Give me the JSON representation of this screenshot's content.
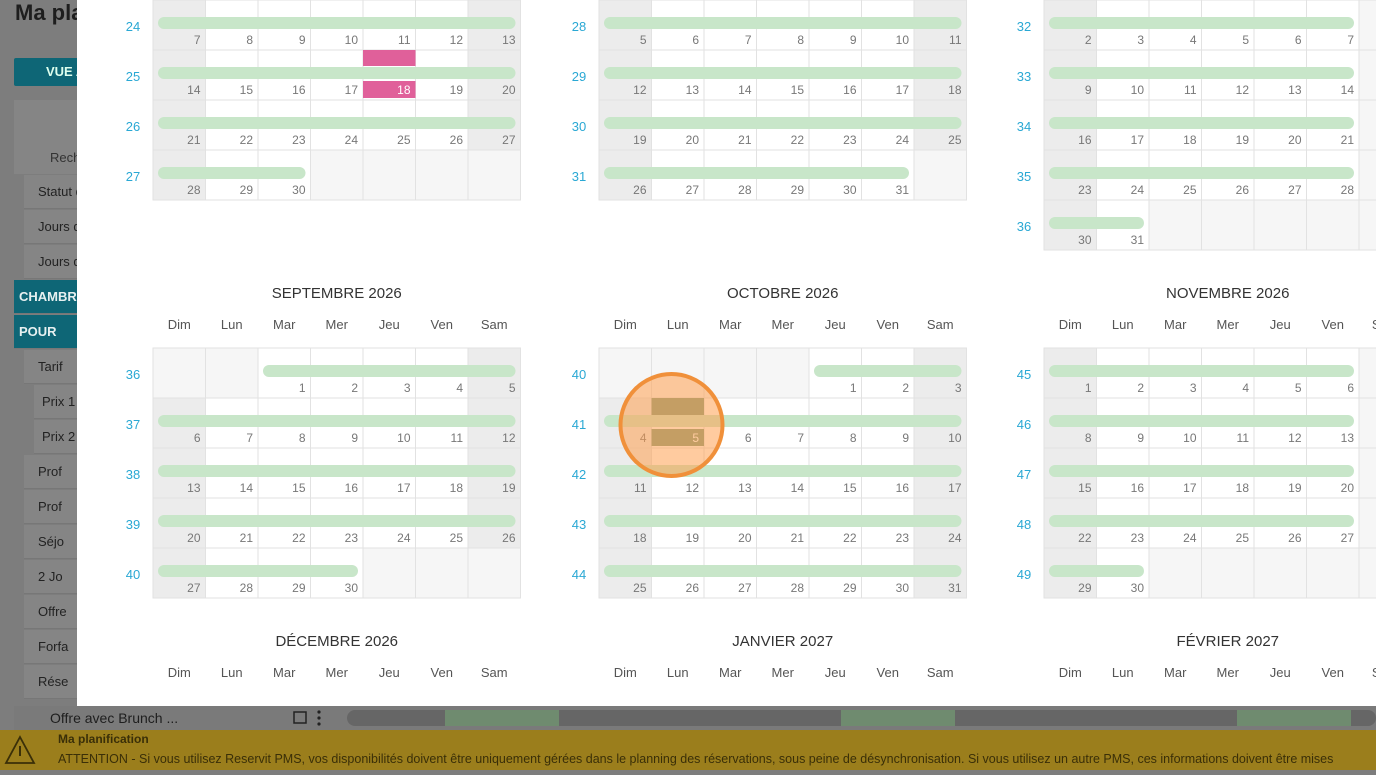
{
  "background": {
    "title": "Ma pla",
    "button": "VUE A",
    "search": "Rech",
    "sidebar": [
      "Statut de",
      "Jours d'a",
      "Jours de",
      "CHAMBR",
      "POUR",
      "Tarif",
      "Prix 1",
      "Prix 2",
      "Prof",
      "Prof",
      "Séjo",
      "2 Jo",
      "Offre",
      "Forfa",
      "Rése"
    ],
    "footer_row": "Offre avec Brunch ..."
  },
  "banner": {
    "title": "Ma planification",
    "message": "ATTENTION - Si vous utilisez Reservit PMS, vos disponibilités doivent être uniquement gérées dans le planning des réservations, sous peine de désynchronisation. Si vous utilisez un autre PMS, ces informations doivent être mises"
  },
  "calendar": {
    "weekdays": [
      "Dim",
      "Lun",
      "Mar",
      "Mer",
      "Jeu",
      "Ven",
      "Sam"
    ],
    "months": [
      {
        "weeks": [
          {
            "week": 24,
            "days": [
              7,
              8,
              9,
              10,
              11,
              12,
              13
            ]
          },
          {
            "week": 25,
            "days": [
              14,
              15,
              16,
              17,
              18,
              19,
              20
            ]
          },
          {
            "week": 26,
            "days": [
              21,
              22,
              23,
              24,
              25,
              26,
              27
            ]
          },
          {
            "week": 27,
            "days": [
              28,
              29,
              30,
              null,
              null,
              null,
              null
            ]
          }
        ],
        "highlighted": [
          18
        ]
      },
      {
        "weeks": [
          {
            "week": 28,
            "days": [
              5,
              6,
              7,
              8,
              9,
              10,
              11
            ]
          },
          {
            "week": 29,
            "days": [
              12,
              13,
              14,
              15,
              16,
              17,
              18
            ]
          },
          {
            "week": 30,
            "days": [
              19,
              20,
              21,
              22,
              23,
              24,
              25
            ]
          },
          {
            "week": 31,
            "days": [
              26,
              27,
              28,
              29,
              30,
              31,
              null
            ]
          }
        ]
      },
      {
        "weeks": [
          {
            "week": 32,
            "days": [
              2,
              3,
              4,
              5,
              6,
              7,
              null
            ]
          },
          {
            "week": 33,
            "days": [
              9,
              10,
              11,
              12,
              13,
              14,
              null
            ]
          },
          {
            "week": 34,
            "days": [
              16,
              17,
              18,
              19,
              20,
              21,
              null
            ]
          },
          {
            "week": 35,
            "days": [
              23,
              24,
              25,
              26,
              27,
              28,
              null
            ]
          },
          {
            "week": 36,
            "days": [
              30,
              31,
              null,
              null,
              null,
              null,
              null
            ]
          }
        ]
      },
      {
        "title": "SEPTEMBRE 2026",
        "weeks": [
          {
            "week": 36,
            "days": [
              null,
              null,
              1,
              2,
              3,
              4,
              5
            ]
          },
          {
            "week": 37,
            "days": [
              6,
              7,
              8,
              9,
              10,
              11,
              12
            ]
          },
          {
            "week": 38,
            "days": [
              13,
              14,
              15,
              16,
              17,
              18,
              19
            ]
          },
          {
            "week": 39,
            "days": [
              20,
              21,
              22,
              23,
              24,
              25,
              26
            ]
          },
          {
            "week": 40,
            "days": [
              27,
              28,
              29,
              30,
              null,
              null,
              null
            ]
          }
        ]
      },
      {
        "title": "OCTOBRE 2026",
        "weeks": [
          {
            "week": 40,
            "days": [
              null,
              null,
              null,
              null,
              1,
              2,
              3
            ]
          },
          {
            "week": 41,
            "days": [
              4,
              5,
              6,
              7,
              8,
              9,
              10
            ]
          },
          {
            "week": 42,
            "days": [
              11,
              12,
              13,
              14,
              15,
              16,
              17
            ]
          },
          {
            "week": 43,
            "days": [
              18,
              19,
              20,
              21,
              22,
              23,
              24
            ]
          },
          {
            "week": 44,
            "days": [
              25,
              26,
              27,
              28,
              29,
              30,
              31
            ]
          }
        ],
        "selected": [
          5
        ]
      },
      {
        "title": "NOVEMBRE 2026",
        "weeks": [
          {
            "week": 45,
            "days": [
              1,
              2,
              3,
              4,
              5,
              6,
              null
            ]
          },
          {
            "week": 46,
            "days": [
              8,
              9,
              10,
              11,
              12,
              13,
              null
            ]
          },
          {
            "week": 47,
            "days": [
              15,
              16,
              17,
              18,
              19,
              20,
              null
            ]
          },
          {
            "week": 48,
            "days": [
              22,
              23,
              24,
              25,
              26,
              27,
              null
            ]
          },
          {
            "week": 49,
            "days": [
              29,
              30,
              null,
              null,
              null,
              null,
              null
            ]
          }
        ]
      },
      {
        "title": "DÉCEMBRE 2026",
        "weeks": []
      },
      {
        "title": "JANVIER 2027",
        "weeks": []
      },
      {
        "title": "FÉVRIER 2027",
        "weeks": []
      }
    ]
  }
}
